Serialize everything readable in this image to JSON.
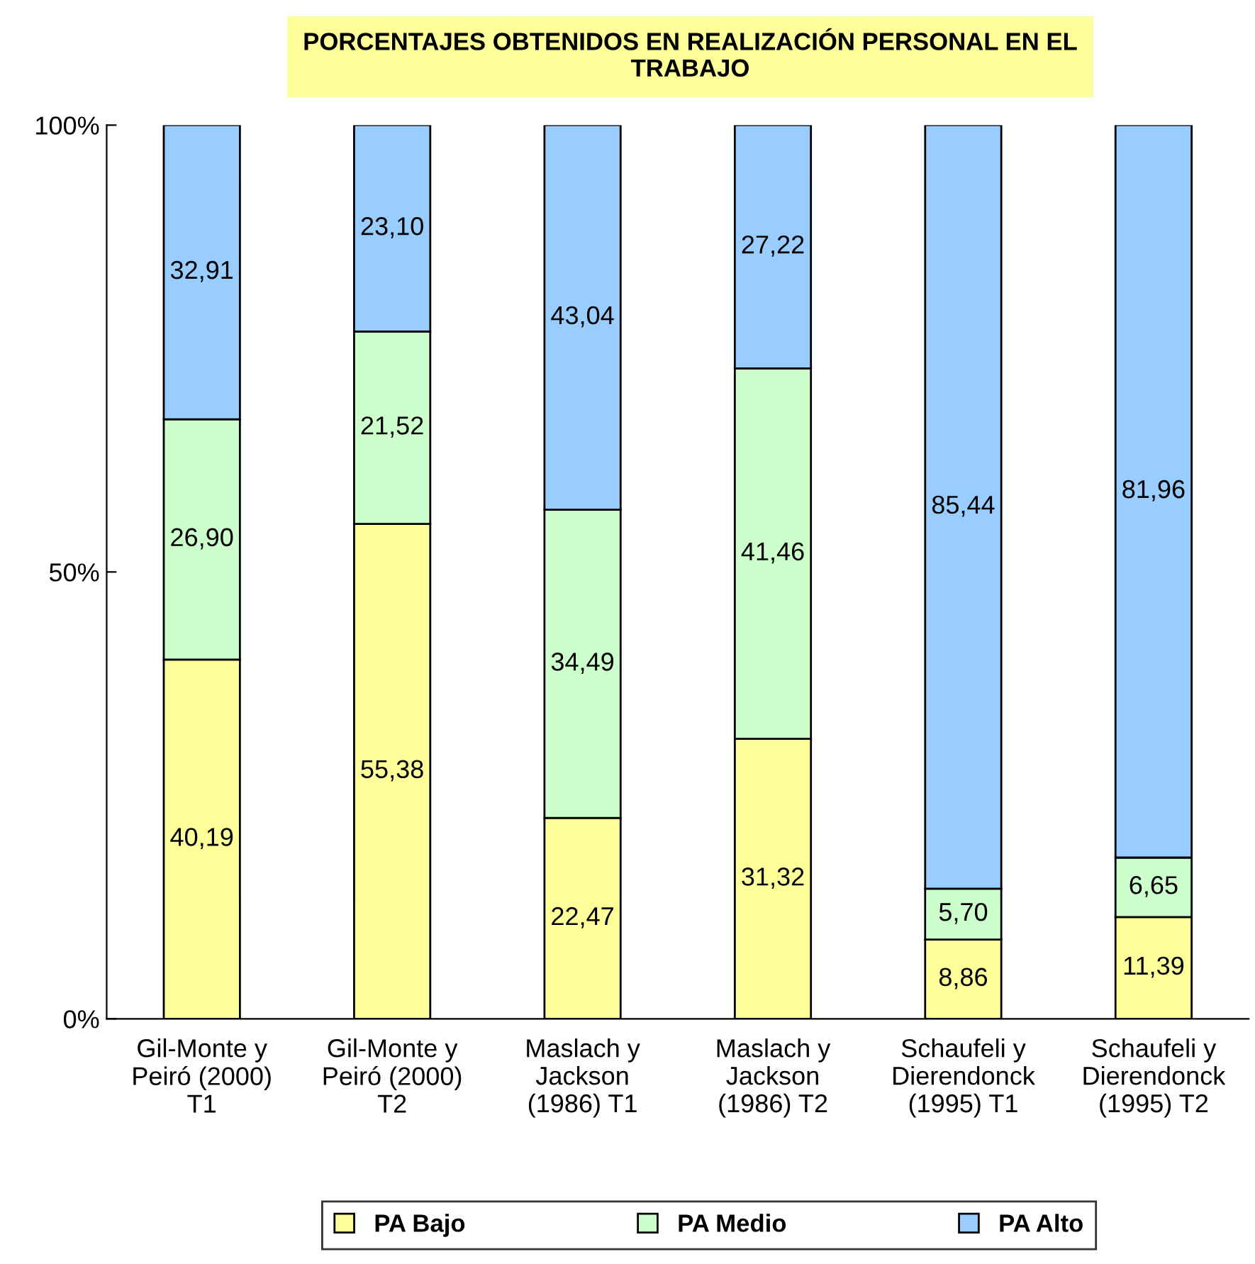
{
  "chart_data": {
    "type": "bar",
    "stacked": true,
    "title": "PORCENTAJES OBTENIDOS EN REALIZACIÓN PERSONAL EN EL\nTRABAJO",
    "categories": [
      "Gil-Monte y\nPeiró (2000)\nT1",
      "Gil-Monte y\nPeiró (2000)\nT2",
      "Maslach y\nJackson\n(1986) T1",
      "Maslach y\nJackson\n(1986) T2",
      "Schaufeli y\nDierendonck\n(1995) T1",
      "Schaufeli y\nDierendonck\n(1995) T2"
    ],
    "series": [
      {
        "name": "PA Bajo",
        "color": "#ffff99",
        "values": [
          40.19,
          55.38,
          22.47,
          31.32,
          8.86,
          11.39
        ],
        "value_labels": [
          "40,19",
          "55,38",
          "22,47",
          "31,32",
          "8,86",
          "11,39"
        ]
      },
      {
        "name": "PA Medio",
        "color": "#ccffcc",
        "values": [
          26.9,
          21.52,
          34.49,
          41.46,
          5.7,
          6.65
        ],
        "value_labels": [
          "26,90",
          "21,52",
          "34,49",
          "41,46",
          "5,70",
          "6,65"
        ]
      },
      {
        "name": "PA Alto",
        "color": "#99ccff",
        "values": [
          32.91,
          23.1,
          43.04,
          27.22,
          85.44,
          81.96
        ],
        "value_labels": [
          "32,91",
          "23,10",
          "43,04",
          "27,22",
          "85,44",
          "81,96"
        ]
      }
    ],
    "ylim": [
      0,
      100
    ],
    "yticks": [
      {
        "value": 0,
        "label": "0%"
      },
      {
        "value": 50,
        "label": "50%"
      },
      {
        "value": 100,
        "label": "100%"
      }
    ],
    "grid": false,
    "legend": "bottom"
  }
}
